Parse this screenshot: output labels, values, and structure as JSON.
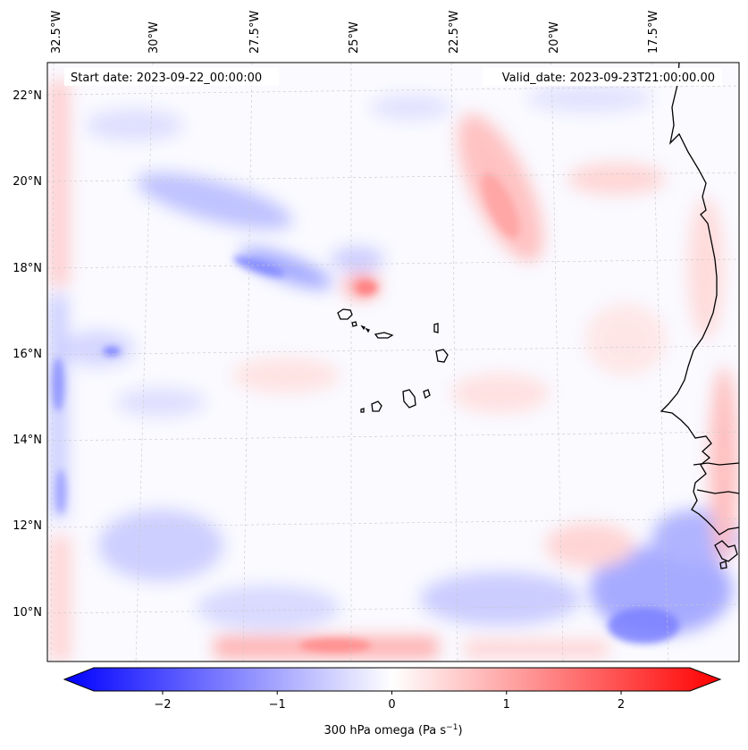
{
  "map": {
    "start_date": "Start date: 2023-09-22_00:00:00",
    "valid_date": "Valid_date: 2023-09-23T21:00:00.00",
    "lon_labels": [
      "32.5°W",
      "30°W",
      "27.5°W",
      "25°W",
      "22.5°W",
      "20°W",
      "17.5°W"
    ],
    "lat_labels": [
      "22°N",
      "20°N",
      "18°N",
      "16°N",
      "14°N",
      "12°N",
      "10°N"
    ],
    "field": "300 hPa omega",
    "colormap": "bwr"
  },
  "colorbar": {
    "label": "300 hPa omega (Pa s",
    "label_exponent": "−1",
    "label_close": ")",
    "ticks": [
      "−2",
      "−1",
      "0",
      "1",
      "2"
    ],
    "tick_values": [
      -2,
      -1,
      0,
      1,
      2
    ],
    "vmin": -2.6,
    "vmax": 2.6,
    "extend": "both"
  }
}
